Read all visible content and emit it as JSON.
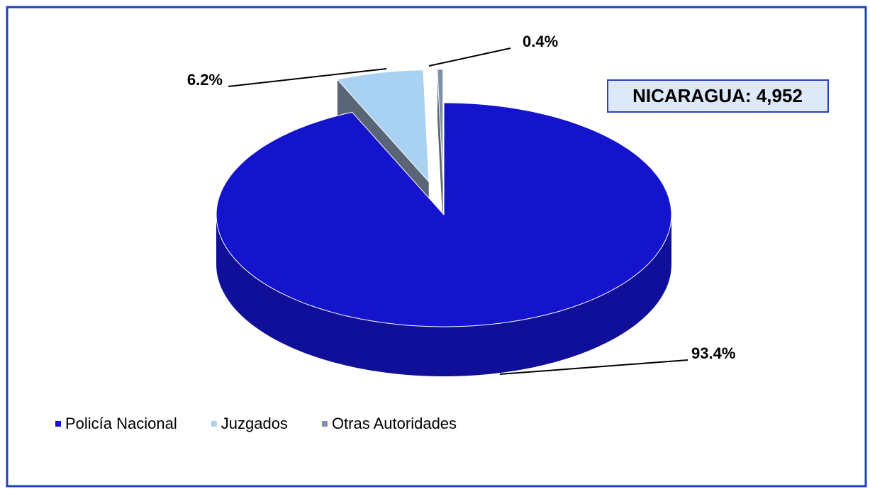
{
  "chart_data": {
    "type": "pie",
    "categories": [
      "Policía Nacional",
      "Juzgados",
      "Otras Autoridades"
    ],
    "values": [
      93.4,
      6.2,
      0.4
    ],
    "value_labels": [
      "93.4%",
      "6.2%",
      "0.4%"
    ],
    "colors": [
      "#1414cc",
      "#a9d2f2",
      "#7f8fa8"
    ],
    "annotation": "NICARAGUA: 4,952",
    "legend": "bottom-left"
  }
}
